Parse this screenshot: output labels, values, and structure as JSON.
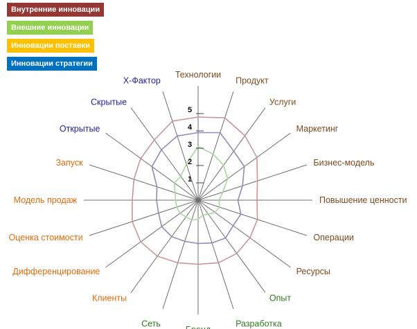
{
  "legend": [
    {
      "label": "Внутренние инновации",
      "color": "#953735"
    },
    {
      "label": "Внешние инновации",
      "color": "#92d050"
    },
    {
      "label": "Инновации поставки",
      "color": "#ffc000"
    },
    {
      "label": "Инновации стратегии",
      "color": "#0070c0"
    }
  ],
  "chart_data": {
    "type": "radar",
    "scale": {
      "min": 0,
      "max": 5,
      "ticks": [
        "1",
        "2",
        "3",
        "4",
        "5"
      ]
    },
    "axes": [
      {
        "label": "Технологии",
        "color": "#7f4a1d"
      },
      {
        "label": "Продукт",
        "color": "#7f4a1d"
      },
      {
        "label": "Услуги",
        "color": "#7f4a1d"
      },
      {
        "label": "Маркетинг",
        "color": "#7f4a1d"
      },
      {
        "label": "Бизнес-модель",
        "color": "#7f4a1d"
      },
      {
        "label": "Повышение ценности",
        "color": "#7f4a1d"
      },
      {
        "label": "Операции",
        "color": "#7f4a1d"
      },
      {
        "label": "Ресурсы",
        "color": "#7f4a1d"
      },
      {
        "label": "Опыт",
        "color": "#2e7d1e"
      },
      {
        "label": "Разработка",
        "color": "#2e7d1e"
      },
      {
        "label": "Бренд",
        "color": "#2e7d1e"
      },
      {
        "label": "Сеть",
        "color": "#2e7d1e"
      },
      {
        "label": "Клиенты",
        "color": "#e36c09"
      },
      {
        "label": "Дифференцирование",
        "color": "#e36c09"
      },
      {
        "label": "Оценка стоимости",
        "color": "#e36c09"
      },
      {
        "label": "Модель продаж",
        "color": "#e36c09"
      },
      {
        "label": "Запуск",
        "color": "#e36c09"
      },
      {
        "label": "Открытые",
        "color": "#1f1fa0"
      },
      {
        "label": "Скрытые",
        "color": "#1f1fa0"
      },
      {
        "label": "X-Фактор",
        "color": "#1f1fa0"
      }
    ],
    "series": [
      {
        "color": "#c9959b",
        "values": [
          4.8,
          5.0,
          4.6,
          4.2,
          3.6,
          3.4,
          3.6,
          3.7,
          3.8,
          3.8,
          3.7,
          3.8,
          4.0,
          4.1,
          4.0,
          3.8,
          3.9,
          4.1,
          4.3,
          4.8
        ]
      },
      {
        "color": "#8f8ab8",
        "values": [
          3.9,
          4.1,
          3.5,
          3.3,
          2.7,
          2.3,
          2.6,
          2.5,
          2.7,
          2.6,
          2.5,
          2.5,
          2.6,
          2.6,
          2.4,
          2.4,
          2.5,
          3.3,
          3.6,
          3.9
        ]
      },
      {
        "color": "#a9d9a0",
        "values": [
          3.1,
          2.8,
          2.5,
          2.1,
          1.5,
          1.2,
          1.3,
          1.2,
          1.0,
          0.9,
          1.1,
          1.2,
          1.2,
          1.3,
          1.3,
          1.3,
          1.4,
          1.7,
          1.7,
          2.2
        ]
      }
    ]
  }
}
